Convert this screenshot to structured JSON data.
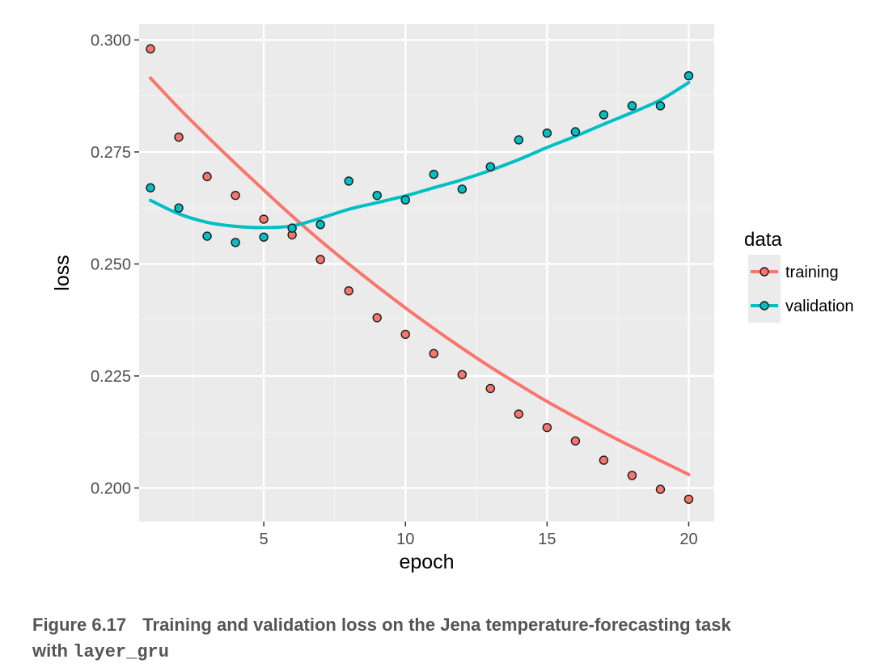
{
  "chart_data": {
    "type": "scatter",
    "xlabel": "epoch",
    "ylabel": "loss",
    "xlim": [
      0.6,
      20.9
    ],
    "ylim": [
      0.1925,
      0.3035
    ],
    "x_ticks": [
      5,
      10,
      15,
      20
    ],
    "y_ticks": [
      0.2,
      0.225,
      0.25,
      0.275,
      0.3
    ],
    "y_tick_labels": [
      "0.200",
      "0.225",
      "0.250",
      "0.275",
      "0.300"
    ],
    "grid": true,
    "legend_title": "data",
    "legend_position": "right",
    "x": [
      1,
      2,
      3,
      4,
      5,
      6,
      7,
      8,
      9,
      10,
      11,
      12,
      13,
      14,
      15,
      16,
      17,
      18,
      19,
      20
    ],
    "series": [
      {
        "name": "training",
        "color": "#f8766d",
        "values": [
          0.298,
          0.2783,
          0.2695,
          0.2653,
          0.26,
          0.2565,
          0.251,
          0.244,
          0.238,
          0.2343,
          0.23,
          0.2253,
          0.2222,
          0.2165,
          0.2135,
          0.2105,
          0.2062,
          0.2028,
          0.1997,
          0.1975
        ],
        "smooth": [
          0.2915,
          0.2848,
          0.2785,
          0.2724,
          0.2665,
          0.2607,
          0.2552,
          0.25,
          0.245,
          0.2402,
          0.2356,
          0.2312,
          0.227,
          0.2231,
          0.2193,
          0.2158,
          0.2124,
          0.2092,
          0.2061,
          0.203
        ]
      },
      {
        "name": "validation",
        "color": "#00bfc4",
        "values": [
          0.267,
          0.2625,
          0.2562,
          0.2548,
          0.256,
          0.258,
          0.2588,
          0.2685,
          0.2653,
          0.2643,
          0.27,
          0.2667,
          0.2717,
          0.2777,
          0.2792,
          0.2795,
          0.2833,
          0.2853,
          0.2853,
          0.292
        ],
        "smooth": [
          0.2642,
          0.2612,
          0.2593,
          0.2584,
          0.2581,
          0.2585,
          0.2602,
          0.2622,
          0.2637,
          0.2652,
          0.267,
          0.2688,
          0.2709,
          0.2733,
          0.276,
          0.2785,
          0.2812,
          0.2838,
          0.2866,
          0.2905
        ]
      }
    ]
  },
  "caption": {
    "figure_number": "Figure 6.17",
    "text": "Training and validation loss on the Jena temperature-forecasting task",
    "text_line2": "with",
    "code": "layer_gru"
  }
}
